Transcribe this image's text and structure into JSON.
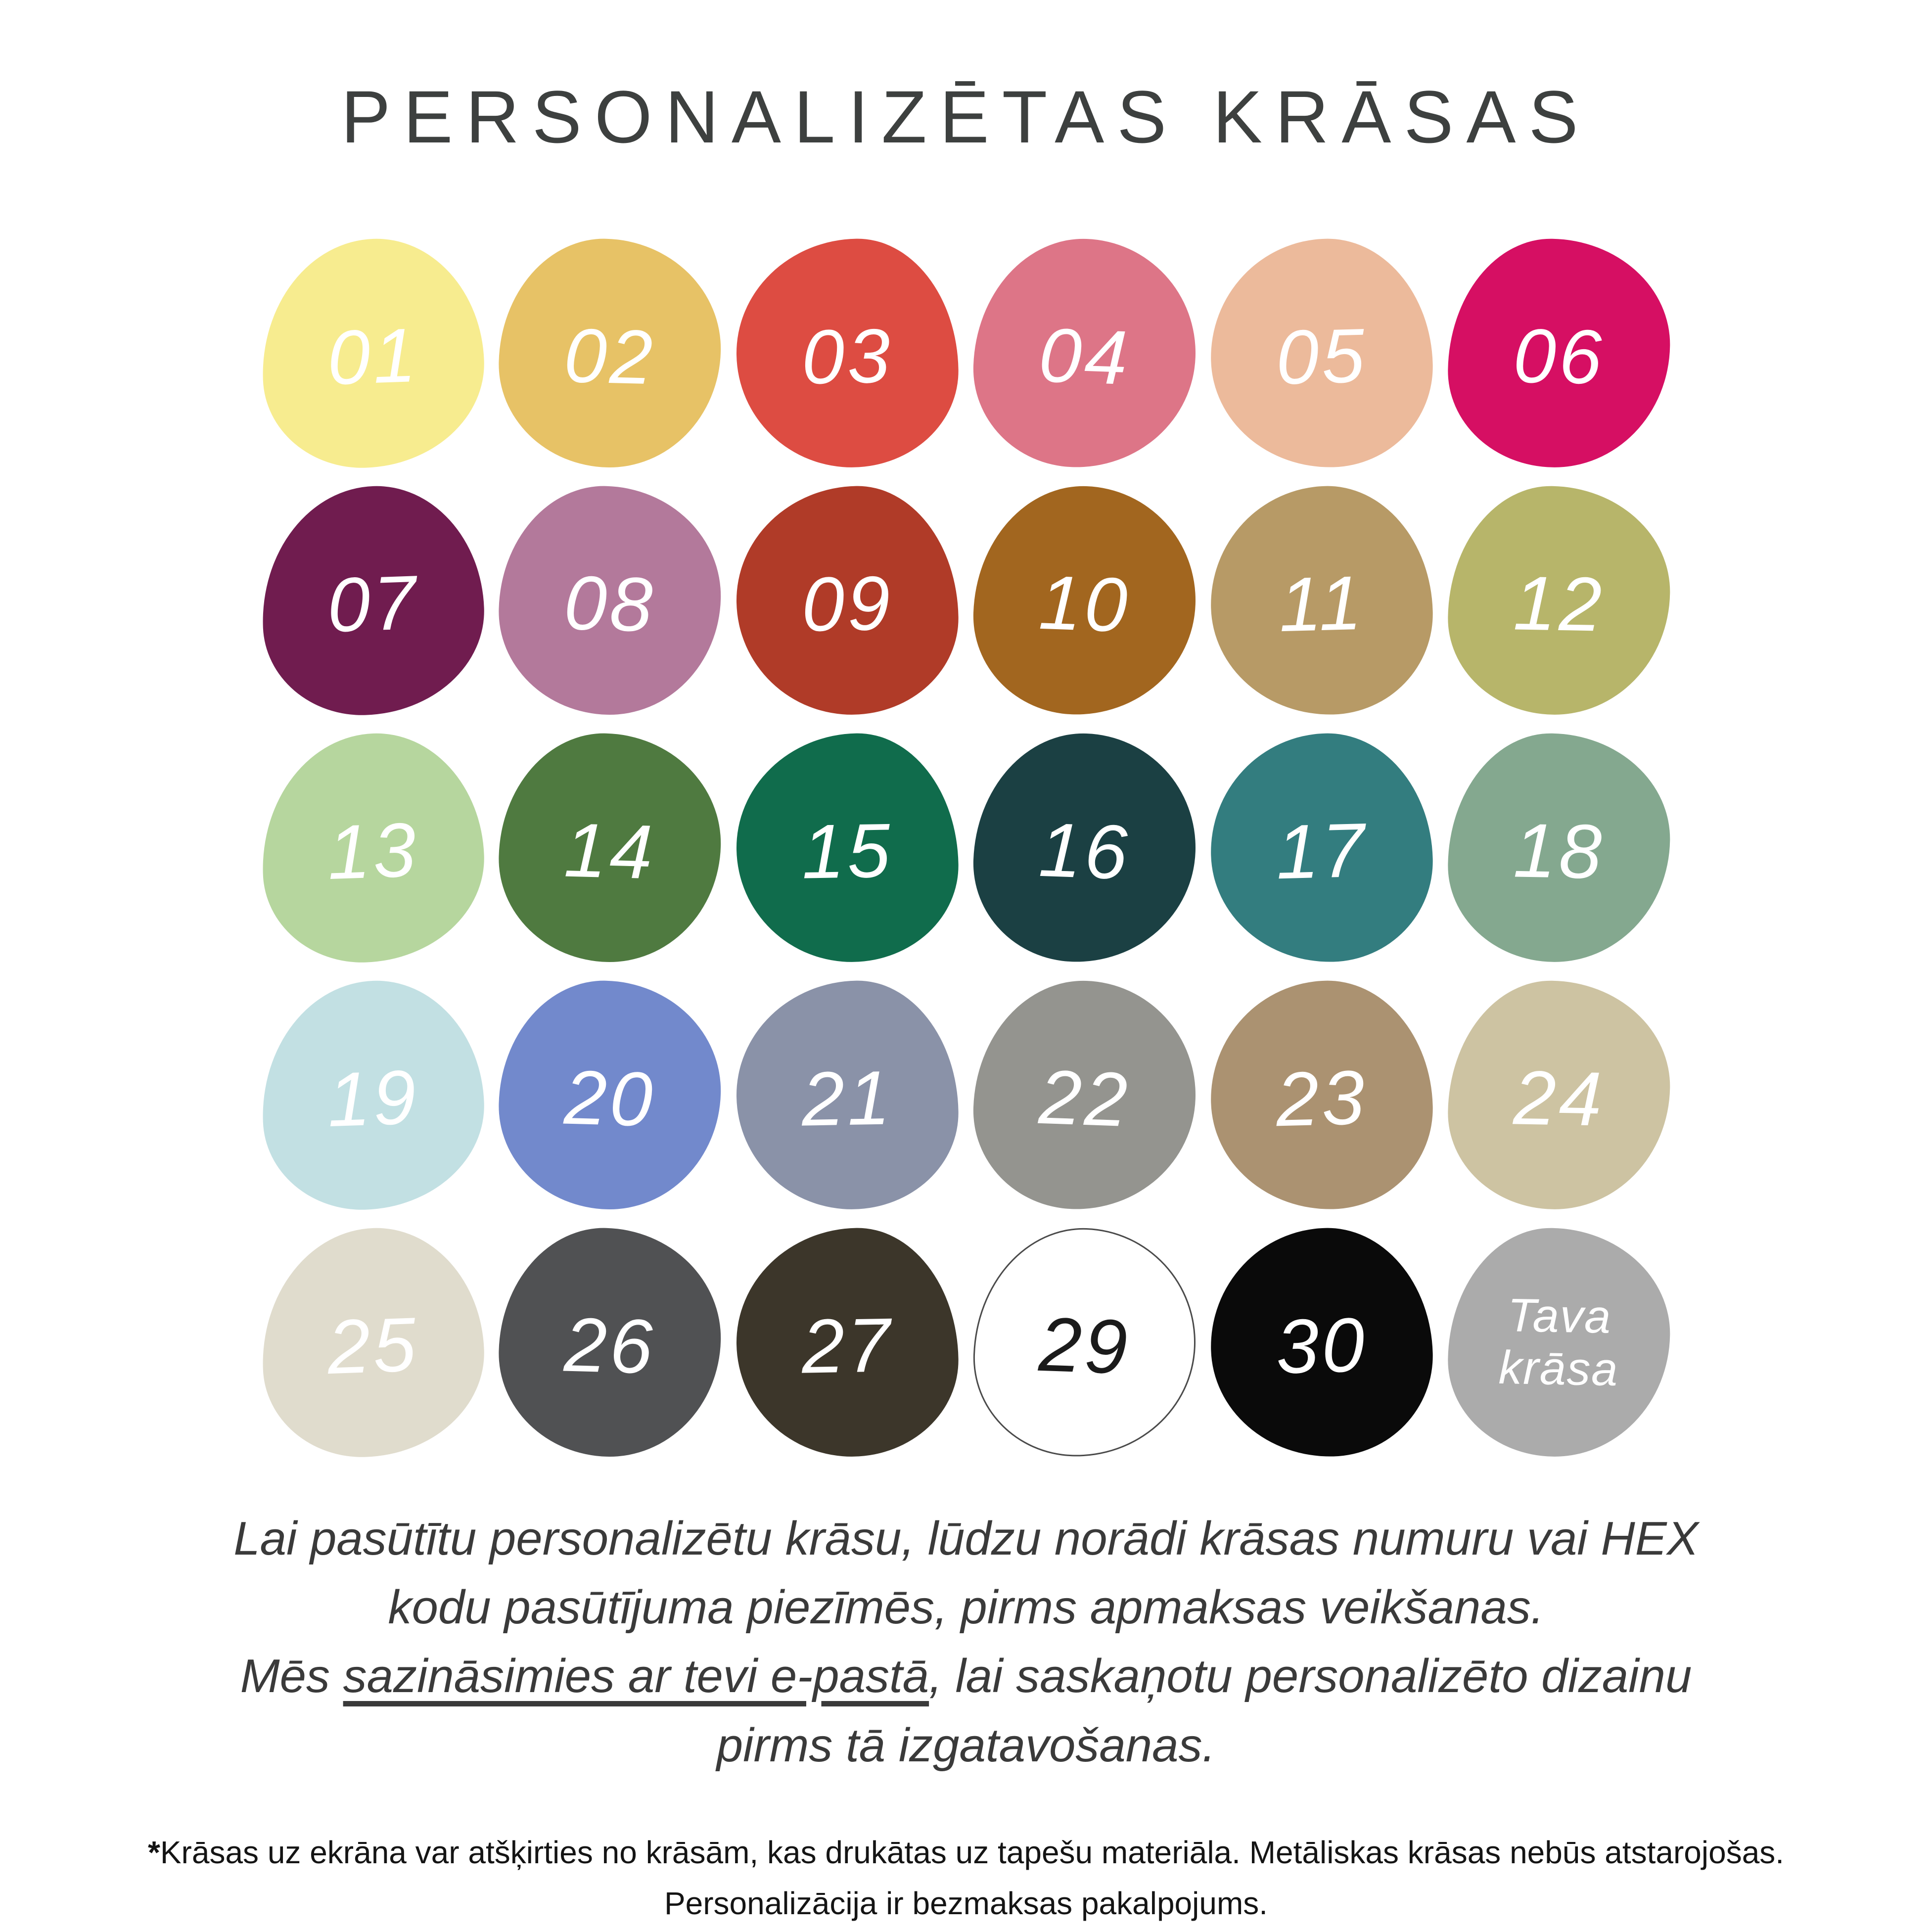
{
  "title": "PERSONALIZĒTAS KRĀSAS",
  "swatches": [
    {
      "number": "01",
      "color": "#F7EC8F",
      "text_color": "#FFFFFF"
    },
    {
      "number": "02",
      "color": "#E7C266",
      "text_color": "#FFFFFF"
    },
    {
      "number": "03",
      "color": "#DD4C42",
      "text_color": "#FFFFFF"
    },
    {
      "number": "04",
      "color": "#DD7587",
      "text_color": "#FFFFFF"
    },
    {
      "number": "05",
      "color": "#ECBA9B",
      "text_color": "#FFFFFF"
    },
    {
      "number": "06",
      "color": "#D60F63",
      "text_color": "#FFFFFF"
    },
    {
      "number": "07",
      "color": "#701C4F",
      "text_color": "#FFFFFF"
    },
    {
      "number": "08",
      "color": "#B3799B",
      "text_color": "#FFFFFF"
    },
    {
      "number": "09",
      "color": "#B03B28",
      "text_color": "#FFFFFF"
    },
    {
      "number": "10",
      "color": "#A2661F",
      "text_color": "#FFFFFF"
    },
    {
      "number": "11",
      "color": "#B79A66",
      "text_color": "#FFFFFF"
    },
    {
      "number": "12",
      "color": "#B7B56A",
      "text_color": "#FFFFFF"
    },
    {
      "number": "13",
      "color": "#B6D69E",
      "text_color": "#FFFFFF"
    },
    {
      "number": "14",
      "color": "#4F7A40",
      "text_color": "#FFFFFF"
    },
    {
      "number": "15",
      "color": "#106C4C",
      "text_color": "#FFFFFF"
    },
    {
      "number": "16",
      "color": "#1B4043",
      "text_color": "#FFFFFF"
    },
    {
      "number": "17",
      "color": "#337D7F",
      "text_color": "#FFFFFF"
    },
    {
      "number": "18",
      "color": "#84A88F",
      "text_color": "#FFFFFF"
    },
    {
      "number": "19",
      "color": "#C2E0E3",
      "text_color": "#FFFFFF"
    },
    {
      "number": "20",
      "color": "#7289CC",
      "text_color": "#FFFFFF"
    },
    {
      "number": "21",
      "color": "#8A92A8",
      "text_color": "#FFFFFF"
    },
    {
      "number": "22",
      "color": "#94948F",
      "text_color": "#FFFFFF"
    },
    {
      "number": "23",
      "color": "#AB9271",
      "text_color": "#FFFFFF"
    },
    {
      "number": "24",
      "color": "#CDC3A2",
      "text_color": "#FFFFFF"
    },
    {
      "number": "25",
      "color": "#E0DCCD",
      "text_color": "#FFFFFF"
    },
    {
      "number": "26",
      "color": "#505153",
      "text_color": "#FFFFFF"
    },
    {
      "number": "27",
      "color": "#3C362A",
      "text_color": "#FFFFFF"
    },
    {
      "number": "29",
      "color": "#FFFFFF",
      "text_color": "#1B1B1B",
      "outline_color": "#4A4A4A"
    },
    {
      "number": "30",
      "color": "#0A0A0A",
      "text_color": "#FFFFFF"
    }
  ],
  "custom_swatch": {
    "label_line1": "Tava",
    "label_line2": "krāsa",
    "color": "#ABABAB",
    "text_color": "#FFFFFF"
  },
  "note": {
    "line1": "Lai pasūtītu personalizētu krāsu, lūdzu norādi krāsas numuru vai HEX",
    "line2": "kodu pasūtījuma piezīmēs, pirms apmaksas veikšanas.",
    "line3_prefix": "Mēs ",
    "line3_underlined": "sazināsimies ar tevi e-pastā",
    "line3_suffix": ", lai saskaņotu personalizēto dizainu",
    "line4": "pirms tā izgatavošanas."
  },
  "footnote": {
    "marker": "*",
    "line1": "Krāsas uz ekrāna var atšķirties no krāsām, kas drukātas uz tapešu materiāla. Metāliskas krāsas nebūs atstarojošas.",
    "line2": "Personalizācija ir bezmaksas pakalpojums."
  }
}
